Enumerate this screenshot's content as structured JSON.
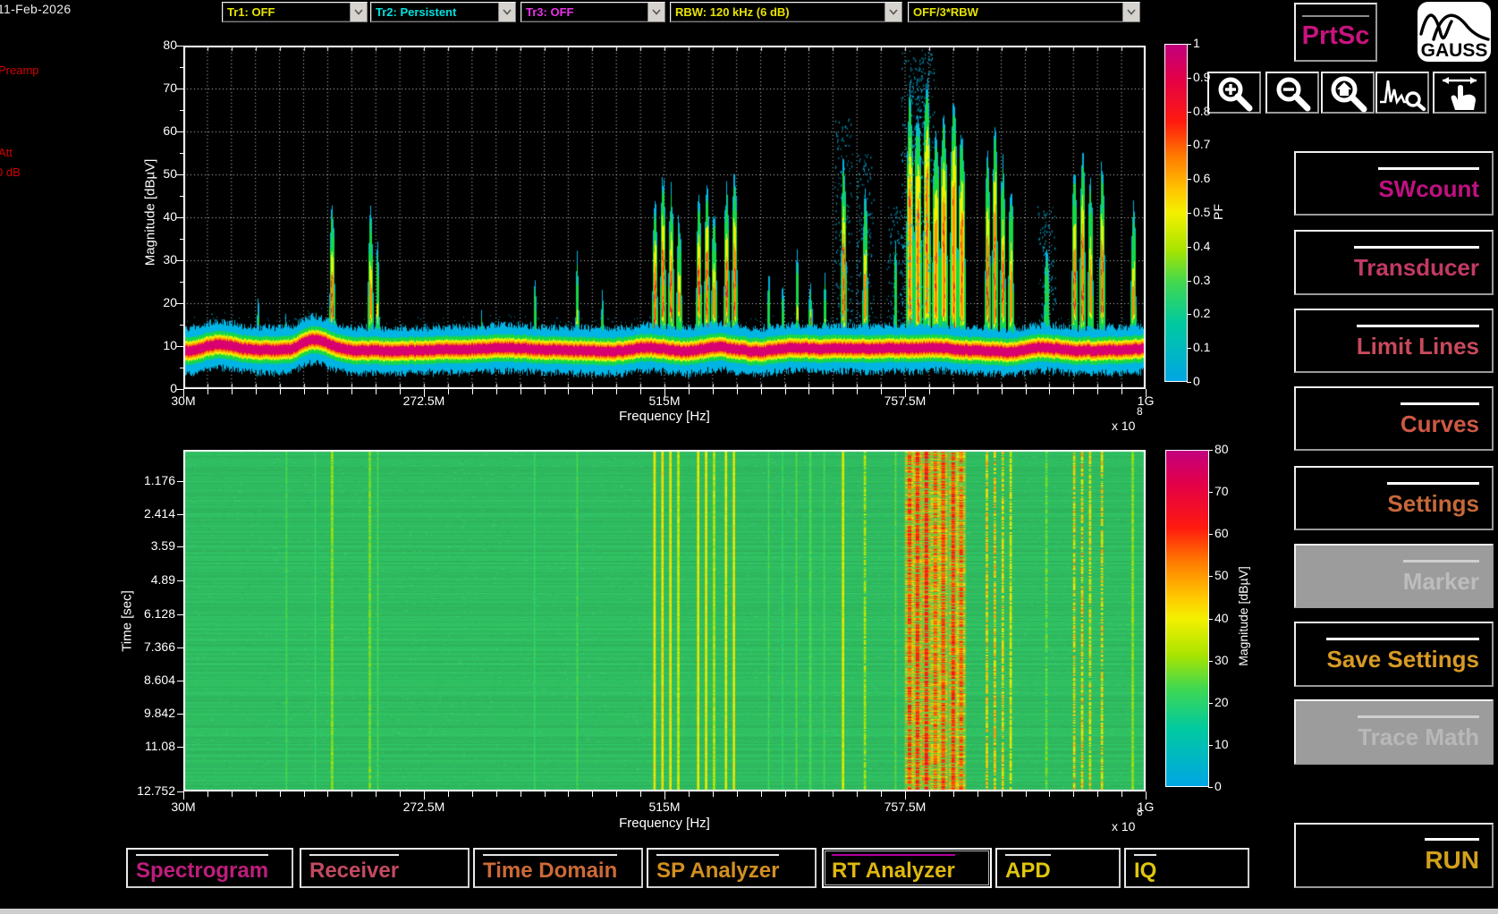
{
  "header": {
    "date": "11-Feb-2026",
    "dropdowns": [
      {
        "label": "Tr1: OFF",
        "color": "#e8e400"
      },
      {
        "label": "Tr2: Persistent",
        "color": "#00e0e0"
      },
      {
        "label": "Tr3: OFF",
        "color": "#e832e8"
      },
      {
        "label": "RBW: 120 kHz (6 dB)",
        "color": "#e8e400"
      },
      {
        "label": "OFF/3*RBW",
        "color": "#e8e400"
      }
    ],
    "prtsc_label": "PrtSc",
    "prtsc_color": "#c8137e",
    "logo_text": "GAUSS"
  },
  "left_labels": {
    "preamp": "Preamp",
    "att": "Att",
    "att_value": "0 dB"
  },
  "toolbar_icons": [
    "zoom-in",
    "zoom-out",
    "zoom-home",
    "zoom-signal",
    "pan-hand"
  ],
  "side_buttons": [
    {
      "label": "SWcount",
      "color": "#c01182",
      "enabled": true
    },
    {
      "label": "Transducer",
      "color": "#c23a64",
      "enabled": true
    },
    {
      "label": "Limit Lines",
      "color": "#c84a5c",
      "enabled": true
    },
    {
      "label": "Curves",
      "color": "#cc5844",
      "enabled": true
    },
    {
      "label": "Settings",
      "color": "#c76839",
      "enabled": true
    },
    {
      "label": "Marker",
      "color": "#bdbdbd",
      "enabled": false
    },
    {
      "label": "Save Settings",
      "color": "#d99b25",
      "enabled": true
    },
    {
      "label": "Trace Math",
      "color": "#b8b8b8",
      "enabled": false
    }
  ],
  "run_button": {
    "label": "RUN",
    "color": "#d3a01c"
  },
  "tabs": [
    {
      "label": "Spectrogram",
      "color": "#bf1d7d",
      "selected": false
    },
    {
      "label": "Receiver",
      "color": "#c34a60",
      "selected": false
    },
    {
      "label": "Time Domain",
      "color": "#cc6a38",
      "selected": false
    },
    {
      "label": "SP Analyzer",
      "color": "#d28f20",
      "selected": false
    },
    {
      "label": "RT Analyzer",
      "color": "#dfb80e",
      "selected": true
    },
    {
      "label": "APD",
      "color": "#e0c60e",
      "selected": false
    },
    {
      "label": "IQ",
      "color": "#e0c60e",
      "selected": false
    }
  ],
  "chart_data": [
    {
      "type": "heatmap",
      "subtype": "persistence-spectrum",
      "title": "",
      "xlabel": "Frequency [Hz]",
      "ylabel": "Magnitude [dBµV]",
      "xlim_mhz": [
        30,
        1000
      ],
      "ylim": [
        0,
        80
      ],
      "x_tick_labels": [
        "30M",
        "272.5M",
        "515M",
        "757.5M",
        "1G"
      ],
      "x_tick_values_mhz": [
        30,
        272.5,
        515,
        757.5,
        1000
      ],
      "x_offset_text": "x 10",
      "x_offset_exp": "8",
      "y_tick_labels": [
        "0",
        "10",
        "20",
        "30",
        "40",
        "50",
        "60",
        "70",
        "80"
      ],
      "grid": true,
      "colorbar": {
        "label": "PF",
        "tick_labels": [
          "0",
          "0.1",
          "0.2",
          "0.3",
          "0.4",
          "0.5",
          "0.6",
          "0.7",
          "0.8",
          "0.9",
          "1"
        ],
        "range": [
          0,
          1
        ]
      },
      "noise_floor_db": 9.4,
      "noise_floor_bumps": [
        {
          "f_mhz": 162,
          "amp_db": 2.4
        },
        {
          "f_mhz": 66,
          "amp_db": 0.9
        }
      ],
      "signals": [
        {
          "f": 105,
          "p": 16,
          "w": 1,
          "hot": 0,
          "spk": 0,
          "sdb": 0,
          "sv": 0
        },
        {
          "f": 134,
          "p": 15,
          "w": 1,
          "hot": 0,
          "spk": 0,
          "sdb": 24,
          "sv": 0.2
        },
        {
          "f": 163,
          "p": 14,
          "w": 1,
          "hot": 0,
          "spk": 0,
          "sdb": 22,
          "sv": 0.2
        },
        {
          "f": 180,
          "p": 40,
          "w": 2,
          "hot": 0.7,
          "spk": 0,
          "sdb": 30,
          "sv": 0.3
        },
        {
          "f": 218,
          "p": 38,
          "w": 2,
          "hot": 0.6,
          "spk": 0,
          "sdb": 28,
          "sv": 0.3
        },
        {
          "f": 226,
          "p": 30,
          "w": 1,
          "hot": 0.4,
          "spk": 0,
          "sdb": 24,
          "sv": 0.2
        },
        {
          "f": 330,
          "p": 14,
          "w": 1,
          "hot": 0,
          "spk": 0,
          "sdb": 0,
          "sv": 0
        },
        {
          "f": 384,
          "p": 22,
          "w": 1,
          "hot": 0,
          "spk": 0,
          "sdb": 22,
          "sv": 0.2
        },
        {
          "f": 427,
          "p": 27,
          "w": 1,
          "hot": 0.2,
          "spk": 0,
          "sdb": 24,
          "sv": 0.2
        },
        {
          "f": 452,
          "p": 18,
          "w": 1,
          "hot": 0,
          "spk": 0,
          "sdb": 0,
          "sv": 0
        },
        {
          "f": 505,
          "p": 40,
          "w": 2,
          "hot": 0.8,
          "spk": 0,
          "sdb": 40,
          "sv": 0.3
        },
        {
          "f": 513,
          "p": 46,
          "w": 2,
          "hot": 0.9,
          "spk": 0,
          "sdb": 42,
          "sv": 0.3
        },
        {
          "f": 521,
          "p": 43,
          "w": 2,
          "hot": 0.8,
          "spk": 0,
          "sdb": 40,
          "sv": 0.3
        },
        {
          "f": 529,
          "p": 37,
          "w": 2,
          "hot": 0.6,
          "spk": 0,
          "sdb": 36,
          "sv": 0.3
        },
        {
          "f": 549,
          "p": 42,
          "w": 2,
          "hot": 0.8,
          "spk": 0,
          "sdb": 40,
          "sv": 0.3
        },
        {
          "f": 557,
          "p": 45,
          "w": 2,
          "hot": 0.8,
          "spk": 0,
          "sdb": 40,
          "sv": 0.3
        },
        {
          "f": 565,
          "p": 39,
          "w": 2,
          "hot": 0.6,
          "spk": 0,
          "sdb": 34,
          "sv": 0.3
        },
        {
          "f": 577,
          "p": 44,
          "w": 2,
          "hot": 0.8,
          "spk": 0,
          "sdb": 38,
          "sv": 0.3
        },
        {
          "f": 585,
          "p": 46,
          "w": 2,
          "hot": 0.8,
          "spk": 0,
          "sdb": 40,
          "sv": 0.3
        },
        {
          "f": 620,
          "p": 24,
          "w": 1,
          "hot": 0.2,
          "spk": 0,
          "sdb": 24,
          "sv": 0.2
        },
        {
          "f": 634,
          "p": 21,
          "w": 1,
          "hot": 0,
          "spk": 0,
          "sdb": 22,
          "sv": 0.2
        },
        {
          "f": 648,
          "p": 27,
          "w": 1,
          "hot": 0.3,
          "spk": 0,
          "sdb": 26,
          "sv": 0.2
        },
        {
          "f": 662,
          "p": 20,
          "w": 2,
          "hot": 0.7,
          "spk": 0,
          "sdb": 24,
          "sv": 0.2
        },
        {
          "f": 676,
          "p": 25,
          "w": 1,
          "hot": 0.2,
          "spk": 0,
          "sdb": 24,
          "sv": 0.2
        },
        {
          "f": 695,
          "p": 50,
          "w": 2,
          "hot": 0.8,
          "spk": 1,
          "sdb": 38,
          "sv": 0.3
        },
        {
          "f": 717,
          "p": 42,
          "w": 2,
          "hot": 0.6,
          "spk": 1,
          "sdb": 32,
          "sv": 0.4
        },
        {
          "f": 748,
          "p": 30,
          "w": 1,
          "hot": 0,
          "spk": 1,
          "sdb": 26,
          "sv": 0.3
        },
        {
          "f": 762,
          "p": 66,
          "w": 3,
          "hot": 0.9,
          "spk": 1,
          "sdb": 58,
          "sv": 0.5
        },
        {
          "f": 770,
          "p": 62,
          "w": 3,
          "hot": 0.85,
          "spk": 1,
          "sdb": 60,
          "sv": 0.4
        },
        {
          "f": 779,
          "p": 68,
          "w": 3,
          "hot": 0.95,
          "spk": 1,
          "sdb": 62,
          "sv": 0.4
        },
        {
          "f": 788,
          "p": 56,
          "w": 3,
          "hot": 0.8,
          "spk": 0,
          "sdb": 55,
          "sv": 0.5
        },
        {
          "f": 796,
          "p": 60,
          "w": 3,
          "hot": 0.85,
          "spk": 0,
          "sdb": 58,
          "sv": 0.4
        },
        {
          "f": 806,
          "p": 63,
          "w": 3,
          "hot": 0.9,
          "spk": 0,
          "sdb": 60,
          "sv": 0.4
        },
        {
          "f": 814,
          "p": 57,
          "w": 3,
          "hot": 0.8,
          "spk": 0,
          "sdb": 56,
          "sv": 0.5
        },
        {
          "f": 840,
          "p": 52,
          "w": 2,
          "hot": 0.8,
          "spk": 0,
          "sdb": 44,
          "sv": 0.6
        },
        {
          "f": 848,
          "p": 58,
          "w": 2,
          "hot": 0.85,
          "spk": 0,
          "sdb": 46,
          "sv": 0.6
        },
        {
          "f": 856,
          "p": 50,
          "w": 2,
          "hot": 0.7,
          "spk": 0,
          "sdb": 42,
          "sv": 0.6
        },
        {
          "f": 864,
          "p": 45,
          "w": 2,
          "hot": 0.6,
          "spk": 0,
          "sdb": 38,
          "sv": 0.4
        },
        {
          "f": 900,
          "p": 30,
          "w": 2,
          "hot": 0,
          "spk": 1,
          "sdb": 26,
          "sv": 0.4
        },
        {
          "f": 928,
          "p": 48,
          "w": 2,
          "hot": 0.7,
          "spk": 0,
          "sdb": 42,
          "sv": 0.7
        },
        {
          "f": 936,
          "p": 52,
          "w": 2,
          "hot": 0.8,
          "spk": 0,
          "sdb": 44,
          "sv": 0.7
        },
        {
          "f": 944,
          "p": 45,
          "w": 2,
          "hot": 0.6,
          "spk": 0,
          "sdb": 40,
          "sv": 0.7
        },
        {
          "f": 956,
          "p": 50,
          "w": 2,
          "hot": 0.7,
          "spk": 0,
          "sdb": 42,
          "sv": 0.7
        },
        {
          "f": 987,
          "p": 40,
          "w": 2,
          "hot": 0.5,
          "spk": 0,
          "sdb": 30,
          "sv": 0.3
        }
      ]
    },
    {
      "type": "heatmap",
      "subtype": "spectrogram",
      "xlabel": "Frequency [Hz]",
      "ylabel": "Time [sec]",
      "xlim_mhz": [
        30,
        1000
      ],
      "x_tick_labels": [
        "30M",
        "272.5M",
        "515M",
        "757.5M",
        "1G"
      ],
      "x_tick_values_mhz": [
        30,
        272.5,
        515,
        757.5,
        1000
      ],
      "x_offset_text": "x 10",
      "x_offset_exp": "8",
      "y_tick_labels": [
        "1.176",
        "2.414",
        "3.59",
        "4.89",
        "6.128",
        "7.366",
        "8.604",
        "9.842",
        "11.08",
        "12.752"
      ],
      "time_span_sec": 12.752,
      "colorbar": {
        "label": "Magnitude [dBµV]",
        "tick_labels": [
          "0",
          "10",
          "20",
          "30",
          "40",
          "50",
          "60",
          "70",
          "80"
        ],
        "range": [
          0,
          80
        ]
      },
      "background_db": 17
    }
  ]
}
